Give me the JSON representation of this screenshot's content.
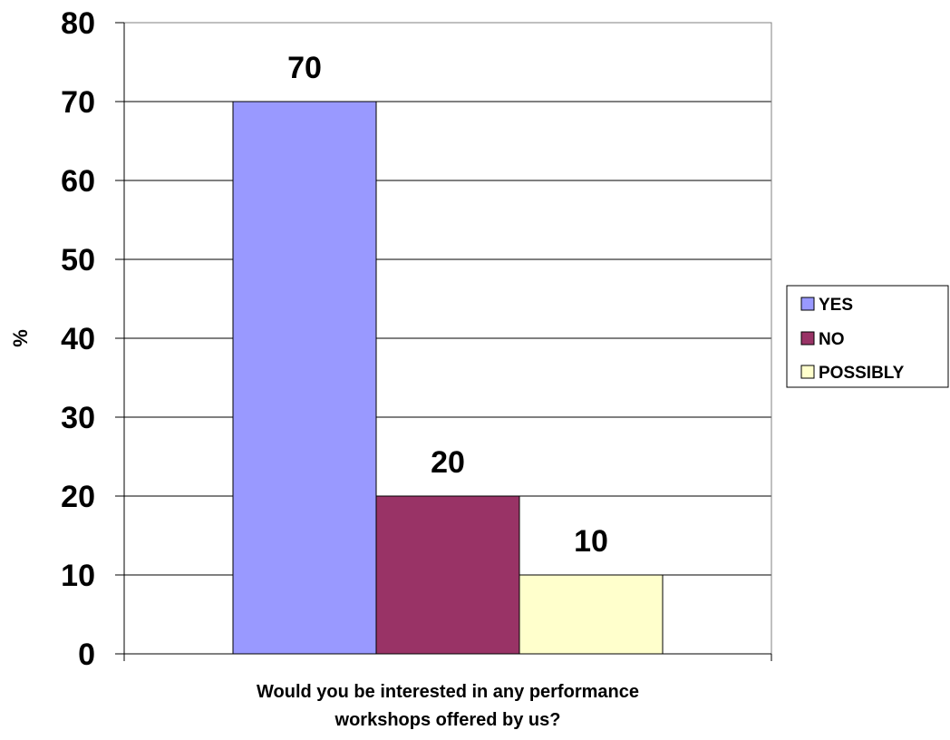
{
  "chart_data": {
    "type": "bar",
    "ylabel": "%",
    "xlabel_lines": [
      "Would you be interested in any performance",
      "workshops offered by us?"
    ],
    "ylim": [
      0,
      80
    ],
    "yticks": [
      0,
      10,
      20,
      30,
      40,
      50,
      60,
      70,
      80
    ],
    "grid": true,
    "legend_position": "right",
    "series": [
      {
        "name": "YES",
        "values": [
          70
        ],
        "color": "#9999ff",
        "label": "70"
      },
      {
        "name": "NO",
        "values": [
          20
        ],
        "color": "#993366",
        "label": "20"
      },
      {
        "name": "POSSIBLY",
        "values": [
          10
        ],
        "color": "#ffffcc",
        "label": "10"
      }
    ]
  }
}
